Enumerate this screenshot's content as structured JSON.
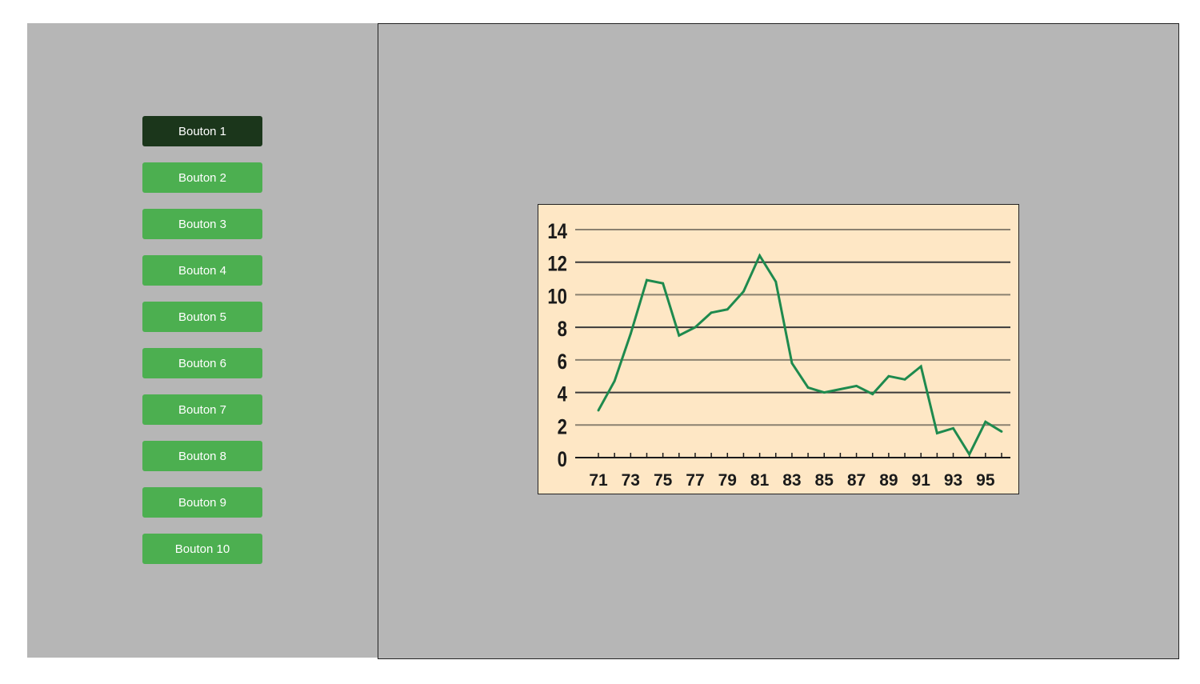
{
  "sidebar": {
    "buttons": [
      {
        "label": "Bouton 1",
        "active": true
      },
      {
        "label": "Bouton 2",
        "active": false
      },
      {
        "label": "Bouton 3",
        "active": false
      },
      {
        "label": "Bouton 4",
        "active": false
      },
      {
        "label": "Bouton 5",
        "active": false
      },
      {
        "label": "Bouton 6",
        "active": false
      },
      {
        "label": "Bouton 7",
        "active": false
      },
      {
        "label": "Bouton 8",
        "active": false
      },
      {
        "label": "Bouton 9",
        "active": false
      },
      {
        "label": "Bouton 10",
        "active": false
      }
    ]
  },
  "colors": {
    "button": "#4caf50",
    "button_active": "#1b361b",
    "panel_bg": "#b6b6b6",
    "chart_bg": "#fee7c5",
    "line": "#1e8a4e"
  },
  "chart_data": {
    "type": "line",
    "title": "",
    "xlabel": "",
    "ylabel": "",
    "x": [
      71,
      72,
      73,
      74,
      75,
      76,
      77,
      78,
      79,
      80,
      81,
      82,
      83,
      84,
      85,
      86,
      87,
      88,
      89,
      90,
      91,
      92,
      93,
      94,
      95,
      96
    ],
    "series": [
      {
        "values": [
          2.9,
          4.7,
          7.6,
          10.9,
          10.7,
          7.5,
          8.0,
          8.9,
          9.1,
          10.2,
          12.4,
          10.8,
          5.8,
          4.3,
          4.0,
          4.2,
          4.4,
          3.9,
          5.0,
          4.8,
          5.6,
          1.5,
          1.8,
          0.2,
          2.2,
          1.6
        ]
      }
    ],
    "xticklabels": [
      "71",
      "73",
      "75",
      "77",
      "79",
      "81",
      "83",
      "85",
      "87",
      "89",
      "91",
      "93",
      "95"
    ],
    "yticks": [
      0,
      2,
      4,
      6,
      8,
      10,
      12,
      14
    ],
    "ylim": [
      0,
      14
    ],
    "xlim": [
      71,
      96
    ],
    "grid": true,
    "legend": "none"
  }
}
